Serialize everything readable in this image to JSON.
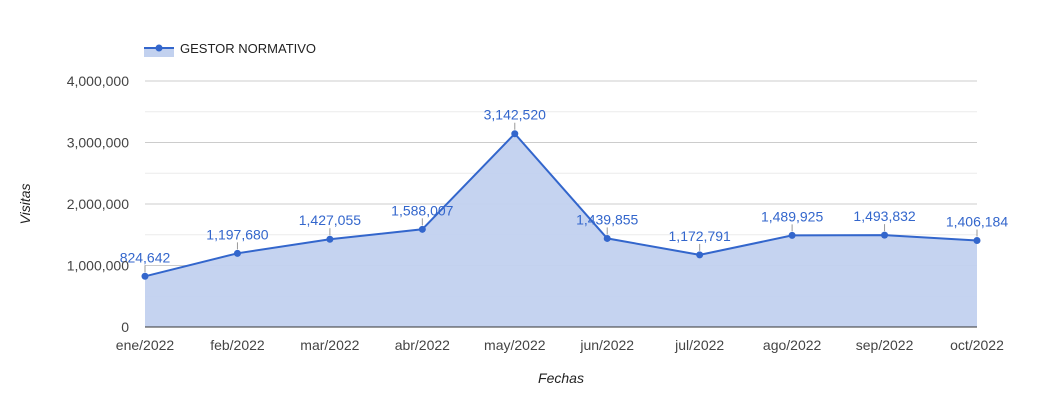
{
  "chart_data": {
    "type": "area",
    "title": "",
    "xlabel": "Fechas",
    "ylabel": "Visitas",
    "categories": [
      "ene/2022",
      "feb/2022",
      "mar/2022",
      "abr/2022",
      "may/2022",
      "jun/2022",
      "jul/2022",
      "ago/2022",
      "sep/2022",
      "oct/2022"
    ],
    "series": [
      {
        "name": "GESTOR NORMATIVO",
        "values": [
          824642,
          1197680,
          1427055,
          1588007,
          3142520,
          1439855,
          1172791,
          1489925,
          1493832,
          1406184
        ],
        "labels": [
          "824,642",
          "1,197,680",
          "1,427,055",
          "1,588,007",
          "3,142,520",
          "1,439,855",
          "1,172,791",
          "1,489,925",
          "1,493,832",
          "1,406,184"
        ]
      }
    ],
    "ylim": [
      0,
      4000000
    ],
    "yticks": [
      0,
      1000000,
      2000000,
      3000000,
      4000000
    ],
    "ytick_labels": [
      "0",
      "1,000,000",
      "2,000,000",
      "3,000,000",
      "4,000,000"
    ],
    "grid": true,
    "legend_position": "top-left",
    "colors": {
      "line": "#3366cc",
      "fill": "#c2d1ef",
      "label": "#3366cc",
      "grid_major": "#cccccc",
      "grid_minor": "#ebebeb",
      "baseline": "#333333"
    }
  }
}
